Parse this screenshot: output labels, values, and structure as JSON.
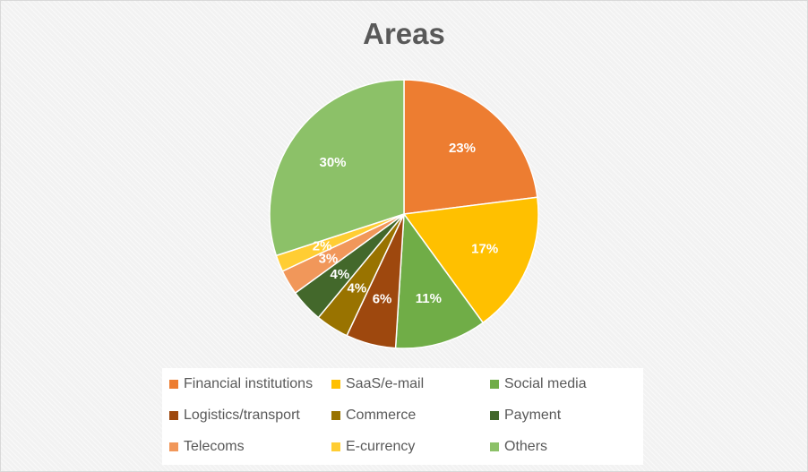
{
  "chart_data": {
    "type": "pie",
    "title": "Areas",
    "slices": [
      {
        "label": "Financial institutions",
        "value": 23,
        "display": "23%",
        "color": "#ED7D31"
      },
      {
        "label": "SaaS/e-mail",
        "value": 17,
        "display": "17%",
        "color": "#FFC000"
      },
      {
        "label": "Social media",
        "value": 11,
        "display": "11%",
        "color": "#70AD47"
      },
      {
        "label": "Logistics/transport",
        "value": 6,
        "display": "6%",
        "color": "#9E480E"
      },
      {
        "label": "Commerce",
        "value": 4,
        "display": "4%",
        "color": "#997300"
      },
      {
        "label": "Payment",
        "value": 4,
        "display": "4%",
        "color": "#43682B"
      },
      {
        "label": "Telecoms",
        "value": 3,
        "display": "3%",
        "color": "#F1975A"
      },
      {
        "label": "E-currency",
        "value": 2,
        "display": "2%",
        "color": "#FFCD33"
      },
      {
        "label": "Others",
        "value": 30,
        "display": "30%",
        "color": "#8CC168"
      }
    ],
    "legend_position": "bottom",
    "data_label_color": "#FFFFFF"
  }
}
